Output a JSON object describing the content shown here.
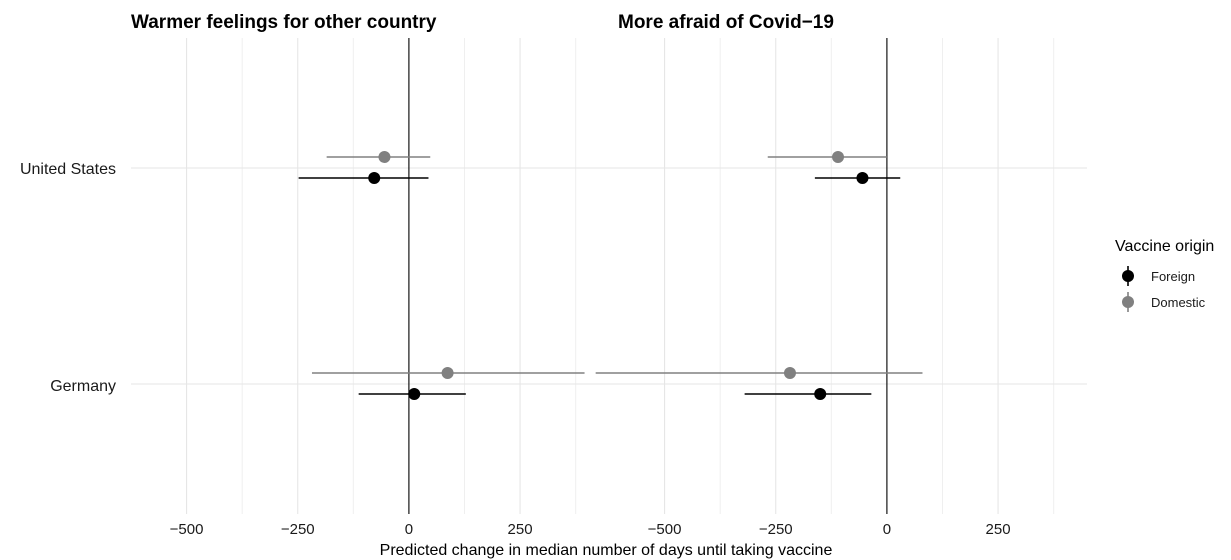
{
  "chart_data": {
    "type": "scatter",
    "subtype": "coefficient-plot",
    "xlabel": "Predicted change in median number of days until taking vaccine",
    "categories": [
      "United States",
      "Germany"
    ],
    "xticks": [
      -500,
      -250,
      0,
      250
    ],
    "xlim": [
      -625,
      450
    ],
    "zero_line": true,
    "grid": true,
    "legend": {
      "title": "Vaccine origin",
      "position": "right",
      "entries": [
        {
          "name": "Foreign",
          "color": "#000000"
        },
        {
          "name": "Domestic",
          "color": "#808080"
        }
      ]
    },
    "panels": [
      {
        "title": "Warmer feelings for other country",
        "points": [
          {
            "category": "United States",
            "series": "Domestic",
            "estimate": -55,
            "lower": -185,
            "upper": 48
          },
          {
            "category": "United States",
            "series": "Foreign",
            "estimate": -78,
            "lower": -248,
            "upper": 44
          },
          {
            "category": "Germany",
            "series": "Domestic",
            "estimate": 87,
            "lower": -218,
            "upper": 395
          },
          {
            "category": "Germany",
            "series": "Foreign",
            "estimate": 12,
            "lower": -113,
            "upper": 128
          }
        ]
      },
      {
        "title": "More afraid of Covid−19",
        "points": [
          {
            "category": "United States",
            "series": "Domestic",
            "estimate": -110,
            "lower": -268,
            "upper": 0
          },
          {
            "category": "United States",
            "series": "Foreign",
            "estimate": -55,
            "lower": -162,
            "upper": 30
          },
          {
            "category": "Germany",
            "series": "Domestic",
            "estimate": -218,
            "lower": -655,
            "upper": 80
          },
          {
            "category": "Germany",
            "series": "Foreign",
            "estimate": -150,
            "lower": -320,
            "upper": -35
          }
        ]
      }
    ]
  }
}
